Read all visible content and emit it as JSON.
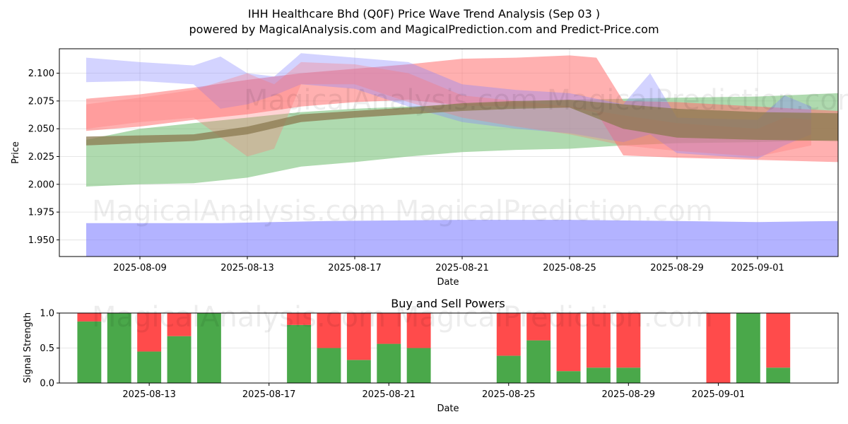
{
  "title_line1": "IHH Healthcare Bhd (Q0F) Price Wave Trend Analysis (Sep 03 )",
  "title_line2": "powered by MagicalAnalysis.com and MagicalPrediction.com and Predict-Price.com",
  "watermark": "MagicalAnalysis.com    MagicalPrediction.com",
  "colors": {
    "buy": "#4aa84a",
    "sell": "#ff4b4b",
    "blue_band": "#8080ff",
    "red_band": "#ff7070",
    "green_band": "#7ac27a",
    "brown_band": "#8b7a50"
  },
  "chart_data": [
    {
      "type": "area",
      "title": "",
      "xlabel": "Date",
      "ylabel": "Price",
      "x_range": [
        "2025-08-06",
        "2025-09-04"
      ],
      "ylim": [
        1.935,
        2.122
      ],
      "x_ticks": [
        "2025-08-09",
        "2025-08-13",
        "2025-08-17",
        "2025-08-21",
        "2025-08-25",
        "2025-08-29",
        "2025-09-01"
      ],
      "y_ticks": [
        1.95,
        1.975,
        2.0,
        2.025,
        2.05,
        2.075,
        2.1
      ],
      "y_tick_labels": [
        "1.950",
        "1.975",
        "2.000",
        "2.025",
        "2.050",
        "2.075",
        "2.100"
      ],
      "grid": true,
      "series": [
        {
          "style": "band",
          "color": "blue_band",
          "opacity": 0.6,
          "x": [
            "2025-08-07",
            "2025-08-12",
            "2025-08-16",
            "2025-08-21",
            "2025-08-25",
            "2025-08-29",
            "2025-09-01",
            "2025-09-04"
          ],
          "upper": [
            1.965,
            1.965,
            1.967,
            1.968,
            1.968,
            1.967,
            1.966,
            1.967
          ],
          "lower": [
            1.935,
            1.935,
            1.935,
            1.935,
            1.935,
            1.935,
            1.935,
            1.935
          ]
        },
        {
          "style": "band",
          "color": "green_band",
          "opacity": 0.6,
          "x": [
            "2025-08-07",
            "2025-08-09",
            "2025-08-11",
            "2025-08-13",
            "2025-08-15",
            "2025-08-17",
            "2025-08-19",
            "2025-08-21",
            "2025-08-23",
            "2025-08-25",
            "2025-08-27",
            "2025-08-29",
            "2025-09-01",
            "2025-09-04"
          ],
          "upper": [
            2.04,
            2.05,
            2.055,
            2.06,
            2.065,
            2.068,
            2.07,
            2.072,
            2.074,
            2.076,
            2.077,
            2.078,
            2.079,
            2.082
          ],
          "lower": [
            1.998,
            2.0,
            2.001,
            2.006,
            2.016,
            2.02,
            2.025,
            2.029,
            2.031,
            2.032,
            2.035,
            2.037,
            2.038,
            2.04
          ]
        },
        {
          "style": "band",
          "color": "red_band",
          "opacity": 0.55,
          "x": [
            "2025-08-07",
            "2025-08-09",
            "2025-08-11",
            "2025-08-13",
            "2025-08-15",
            "2025-08-17",
            "2025-08-19",
            "2025-08-21",
            "2025-08-23",
            "2025-08-25",
            "2025-08-26",
            "2025-08-27",
            "2025-08-29",
            "2025-09-01",
            "2025-09-04"
          ],
          "upper": [
            2.077,
            2.081,
            2.087,
            2.094,
            2.1,
            2.104,
            2.108,
            2.113,
            2.114,
            2.116,
            2.114,
            2.075,
            2.074,
            2.07,
            2.066
          ],
          "lower": [
            2.048,
            2.052,
            2.058,
            2.063,
            2.07,
            2.074,
            2.076,
            2.071,
            2.07,
            2.069,
            2.065,
            2.026,
            2.024,
            2.022,
            2.02
          ]
        },
        {
          "style": "band",
          "color": "blue_band",
          "opacity": 0.35,
          "x": [
            "2025-08-07",
            "2025-08-09",
            "2025-08-11",
            "2025-08-12",
            "2025-08-13",
            "2025-08-14",
            "2025-08-15",
            "2025-08-17",
            "2025-08-19",
            "2025-08-21",
            "2025-08-23",
            "2025-08-25",
            "2025-08-27",
            "2025-08-28",
            "2025-08-29",
            "2025-09-01",
            "2025-09-02",
            "2025-09-03"
          ],
          "upper": [
            2.114,
            2.11,
            2.107,
            2.115,
            2.1,
            2.097,
            2.118,
            2.114,
            2.11,
            2.09,
            2.085,
            2.082,
            2.072,
            2.1,
            2.06,
            2.058,
            2.08,
            2.07
          ],
          "lower": [
            2.092,
            2.093,
            2.09,
            2.068,
            2.072,
            2.08,
            2.09,
            2.086,
            2.07,
            2.056,
            2.05,
            2.046,
            2.038,
            2.045,
            2.028,
            2.023,
            2.035,
            2.045
          ]
        },
        {
          "style": "band",
          "color": "red_band",
          "opacity": 0.3,
          "x": [
            "2025-08-07",
            "2025-08-09",
            "2025-08-11",
            "2025-08-13",
            "2025-08-14",
            "2025-08-15",
            "2025-08-17",
            "2025-08-19",
            "2025-08-21",
            "2025-08-23",
            "2025-08-25",
            "2025-08-27",
            "2025-08-29",
            "2025-09-01",
            "2025-09-02",
            "2025-09-03"
          ],
          "upper": [
            2.072,
            2.078,
            2.085,
            2.1,
            2.09,
            2.11,
            2.108,
            2.1,
            2.08,
            2.075,
            2.07,
            2.062,
            2.055,
            2.05,
            2.06,
            2.058
          ],
          "lower": [
            2.05,
            2.056,
            2.06,
            2.025,
            2.032,
            2.09,
            2.09,
            2.074,
            2.06,
            2.052,
            2.045,
            2.035,
            2.03,
            2.025,
            2.03,
            2.035
          ]
        },
        {
          "style": "band",
          "color": "brown_band",
          "opacity": 0.75,
          "x": [
            "2025-08-07",
            "2025-08-09",
            "2025-08-11",
            "2025-08-13",
            "2025-08-15",
            "2025-08-17",
            "2025-08-19",
            "2025-08-21",
            "2025-08-23",
            "2025-08-25",
            "2025-08-27",
            "2025-08-29",
            "2025-09-01",
            "2025-09-04"
          ],
          "upper": [
            2.043,
            2.044,
            2.045,
            2.052,
            2.063,
            2.066,
            2.069,
            2.073,
            2.075,
            2.076,
            2.072,
            2.068,
            2.065,
            2.064
          ],
          "lower": [
            2.035,
            2.037,
            2.039,
            2.045,
            2.056,
            2.06,
            2.063,
            2.066,
            2.068,
            2.069,
            2.05,
            2.042,
            2.04,
            2.039
          ]
        }
      ]
    },
    {
      "type": "bar",
      "title": "Buy and Sell Powers",
      "xlabel": "Date",
      "ylabel": "Signal Strength",
      "ylim": [
        0,
        1
      ],
      "x_range": [
        "2025-08-10",
        "2025-09-05"
      ],
      "x_ticks": [
        "2025-08-13",
        "2025-08-17",
        "2025-08-21",
        "2025-08-25",
        "2025-08-29",
        "2025-09-01"
      ],
      "y_ticks": [
        0.0,
        0.5,
        1.0
      ],
      "y_tick_labels": [
        "0.0",
        "0.5",
        "1.0"
      ],
      "grid": true,
      "series": [
        {
          "name": "Buy",
          "color": "buy",
          "dates": [
            "2025-08-11",
            "2025-08-12",
            "2025-08-13",
            "2025-08-14",
            "2025-08-15",
            "2025-08-18",
            "2025-08-19",
            "2025-08-20",
            "2025-08-21",
            "2025-08-22",
            "2025-08-25",
            "2025-08-26",
            "2025-08-27",
            "2025-08-28",
            "2025-08-29",
            "2025-09-01",
            "2025-09-02",
            "2025-09-03"
          ],
          "values": [
            0.88,
            1.0,
            0.45,
            0.67,
            1.0,
            0.83,
            0.5,
            0.33,
            0.56,
            0.5,
            0.39,
            0.61,
            0.17,
            0.22,
            0.22,
            0.0,
            1.0,
            0.22
          ]
        },
        {
          "name": "Sell",
          "color": "sell",
          "dates": [
            "2025-08-11",
            "2025-08-12",
            "2025-08-13",
            "2025-08-14",
            "2025-08-15",
            "2025-08-18",
            "2025-08-19",
            "2025-08-20",
            "2025-08-21",
            "2025-08-22",
            "2025-08-25",
            "2025-08-26",
            "2025-08-27",
            "2025-08-28",
            "2025-08-29",
            "2025-09-01",
            "2025-09-02",
            "2025-09-03"
          ],
          "values": [
            0.12,
            0.0,
            0.55,
            0.33,
            0.0,
            0.17,
            0.5,
            0.67,
            0.44,
            0.5,
            0.61,
            0.39,
            0.83,
            0.78,
            0.78,
            1.0,
            0.0,
            0.78
          ]
        }
      ]
    }
  ]
}
